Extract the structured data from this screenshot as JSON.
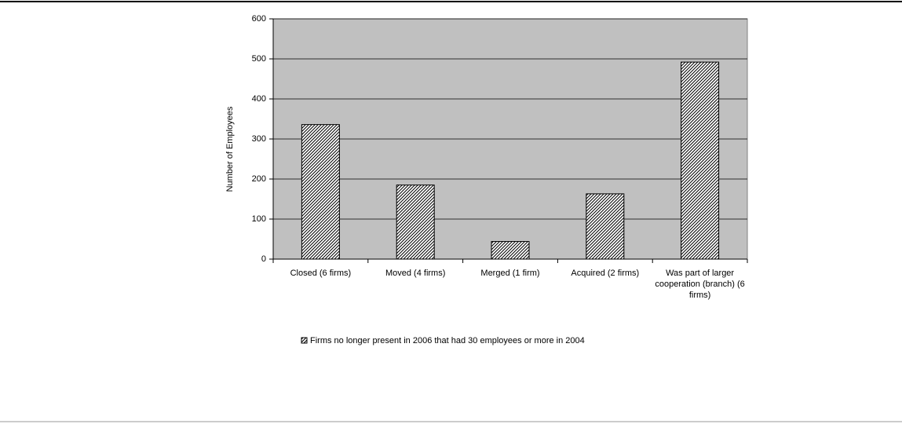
{
  "chart_data": {
    "type": "bar",
    "y_axis_label": "Number of Employees",
    "categories": [
      "Closed (6 firms)",
      "Moved (4 firms)",
      "Merged (1 firm)",
      "Acquired (2 firms)",
      "Was part of larger cooperation (branch) (6 firms)"
    ],
    "series": [
      {
        "name": "Firms no longer present in 2006 that had 30 employees or more in 2004",
        "color": "#000000",
        "values": [
          336,
          185,
          44,
          163,
          492
        ]
      }
    ],
    "ylim": [
      0,
      600
    ],
    "yticks": [
      0,
      100,
      200,
      300,
      400,
      500,
      600
    ],
    "grid": true,
    "plot_background": "#c0c0c0",
    "legend": "bottom"
  }
}
